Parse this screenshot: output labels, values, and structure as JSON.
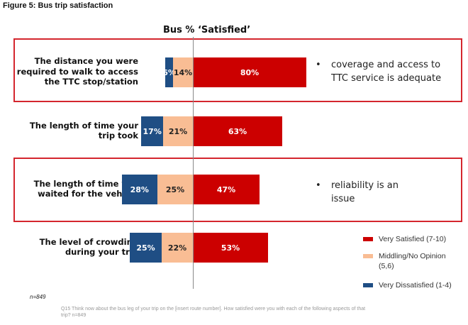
{
  "figure_title": "Figure 5: Bus trip satisfaction",
  "chart_data": {
    "type": "bar",
    "orientation": "horizontal-diverging-stacked",
    "title": "Bus % ‘Satisfied’",
    "categories": [
      "The distance you were required to walk to access the TTC stop/station",
      "The length of time your trip took",
      "The length of time you waited for the vehicle",
      "The level of crowding during your trip"
    ],
    "series": [
      {
        "name": "Very Dissatisfied (1-4)",
        "color": "#1f4e84",
        "label_color": "#ffffff",
        "side": "left-outer",
        "values": [
          6,
          17,
          28,
          25
        ]
      },
      {
        "name": "Middling/No Opinion (5,6)",
        "color": "#f9bd94",
        "label_color": "#222222",
        "side": "left-inner",
        "values": [
          14,
          21,
          25,
          22
        ]
      },
      {
        "name": "Very Satisfied (7-10)",
        "color": "#cc0000",
        "label_color": "#ffffff",
        "side": "right",
        "values": [
          80,
          63,
          47,
          53
        ]
      }
    ],
    "value_labels": [
      [
        "6%",
        "14%",
        "80%"
      ],
      [
        "17%",
        "21%",
        "63%"
      ],
      [
        "28%",
        "25%",
        "47%"
      ],
      [
        "25%",
        "22%",
        "53%"
      ]
    ],
    "legend": {
      "placement": "bottom-right",
      "entries": [
        "Very Satisfied (7-10)",
        "Middling/No Opinion (5,6)",
        "Very Dissatisfied (1-4)"
      ]
    },
    "xlabel": "",
    "ylabel": "",
    "grid": false
  },
  "row_labels": [
    [
      "The distance you were",
      "required to walk to access",
      "the TTC stop/station"
    ],
    [
      "The length of time your",
      "trip took"
    ],
    [
      "The length of time you",
      "waited for the vehicle"
    ],
    [
      "The level of crowding",
      "during your trip"
    ]
  ],
  "highlights": [
    {
      "row": 0,
      "note_lines": [
        "coverage and access to",
        "TTC service is adequate"
      ],
      "bullet": "•"
    },
    {
      "row": 2,
      "note_lines": [
        "reliability is an",
        "issue"
      ],
      "bullet": "•"
    }
  ],
  "legend_items": [
    {
      "label_lines": [
        "Very Satisfied (7-10)"
      ],
      "color": "#cc0000"
    },
    {
      "label_lines": [
        "Middling/No Opinion",
        "(5,6)"
      ],
      "color": "#f9bd94"
    },
    {
      "label_lines": [
        "Very Dissatisfied (1-4)"
      ],
      "color": "#1f4e84"
    }
  ],
  "sample_size": "n=849",
  "question_text": "Q15 Think now about the bus leg of your trip on the [insert route number]. How satisfied were you with each of the following aspects of that trip? n=849"
}
